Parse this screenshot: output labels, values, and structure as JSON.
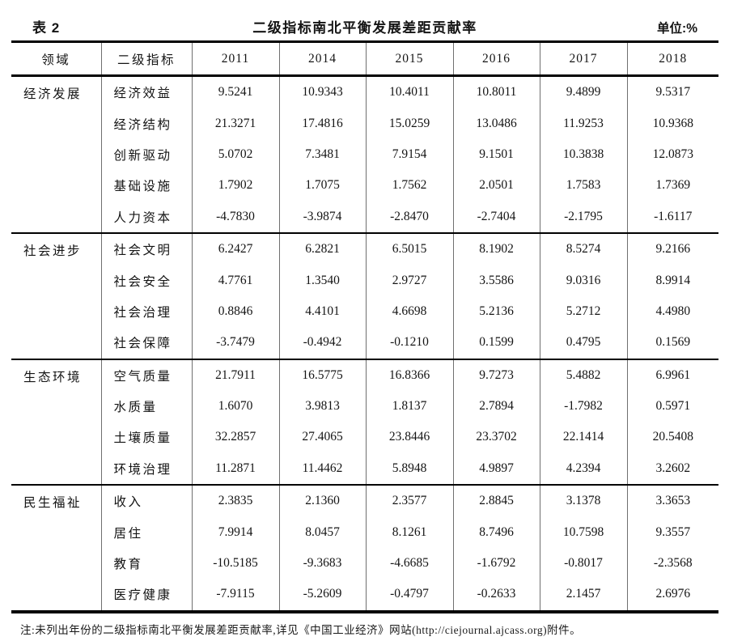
{
  "caption": {
    "label": "表 2",
    "title": "二级指标南北平衡发展差距贡献率",
    "unit": "单位:%"
  },
  "table": {
    "columns": [
      "领域",
      "二级指标",
      "2011",
      "2014",
      "2015",
      "2016",
      "2017",
      "2018"
    ],
    "groups": [
      {
        "domain": "经济发展",
        "rows": [
          {
            "indicator": "经济效益",
            "values": [
              "9.5241",
              "10.9343",
              "10.4011",
              "10.8011",
              "9.4899",
              "9.5317"
            ]
          },
          {
            "indicator": "经济结构",
            "values": [
              "21.3271",
              "17.4816",
              "15.0259",
              "13.0486",
              "11.9253",
              "10.9368"
            ]
          },
          {
            "indicator": "创新驱动",
            "values": [
              "5.0702",
              "7.3481",
              "7.9154",
              "9.1501",
              "10.3838",
              "12.0873"
            ]
          },
          {
            "indicator": "基础设施",
            "values": [
              "1.7902",
              "1.7075",
              "1.7562",
              "2.0501",
              "1.7583",
              "1.7369"
            ]
          },
          {
            "indicator": "人力资本",
            "values": [
              "-4.7830",
              "-3.9874",
              "-2.8470",
              "-2.7404",
              "-2.1795",
              "-1.6117"
            ]
          }
        ]
      },
      {
        "domain": "社会进步",
        "rows": [
          {
            "indicator": "社会文明",
            "values": [
              "6.2427",
              "6.2821",
              "6.5015",
              "8.1902",
              "8.5274",
              "9.2166"
            ]
          },
          {
            "indicator": "社会安全",
            "values": [
              "4.7761",
              "1.3540",
              "2.9727",
              "3.5586",
              "9.0316",
              "8.9914"
            ]
          },
          {
            "indicator": "社会治理",
            "values": [
              "0.8846",
              "4.4101",
              "4.6698",
              "5.2136",
              "5.2712",
              "4.4980"
            ]
          },
          {
            "indicator": "社会保障",
            "values": [
              "-3.7479",
              "-0.4942",
              "-0.1210",
              "0.1599",
              "0.4795",
              "0.1569"
            ]
          }
        ]
      },
      {
        "domain": "生态环境",
        "rows": [
          {
            "indicator": "空气质量",
            "values": [
              "21.7911",
              "16.5775",
              "16.8366",
              "9.7273",
              "5.4882",
              "6.9961"
            ]
          },
          {
            "indicator": "水质量",
            "values": [
              "1.6070",
              "3.9813",
              "1.8137",
              "2.7894",
              "-1.7982",
              "0.5971"
            ]
          },
          {
            "indicator": "土壤质量",
            "values": [
              "32.2857",
              "27.4065",
              "23.8446",
              "23.3702",
              "22.1414",
              "20.5408"
            ]
          },
          {
            "indicator": "环境治理",
            "values": [
              "11.2871",
              "11.4462",
              "5.8948",
              "4.9897",
              "4.2394",
              "3.2602"
            ]
          }
        ]
      },
      {
        "domain": "民生福祉",
        "rows": [
          {
            "indicator": "收入",
            "values": [
              "2.3835",
              "2.1360",
              "2.3577",
              "2.8845",
              "3.1378",
              "3.3653"
            ]
          },
          {
            "indicator": "居住",
            "values": [
              "7.9914",
              "8.0457",
              "8.1261",
              "8.7496",
              "10.7598",
              "9.3557"
            ]
          },
          {
            "indicator": "教育",
            "values": [
              "-10.5185",
              "-9.3683",
              "-4.6685",
              "-1.6792",
              "-0.8017",
              "-2.3568"
            ]
          },
          {
            "indicator": "医疗健康",
            "values": [
              "-7.9115",
              "-5.2609",
              "-0.4797",
              "-0.2633",
              "2.1457",
              "2.6976"
            ]
          }
        ]
      }
    ]
  },
  "footnote": "注:未列出年份的二级指标南北平衡发展差距贡献率,详见《中国工业经济》网站(http://ciejournal.ajcass.org)附件。"
}
